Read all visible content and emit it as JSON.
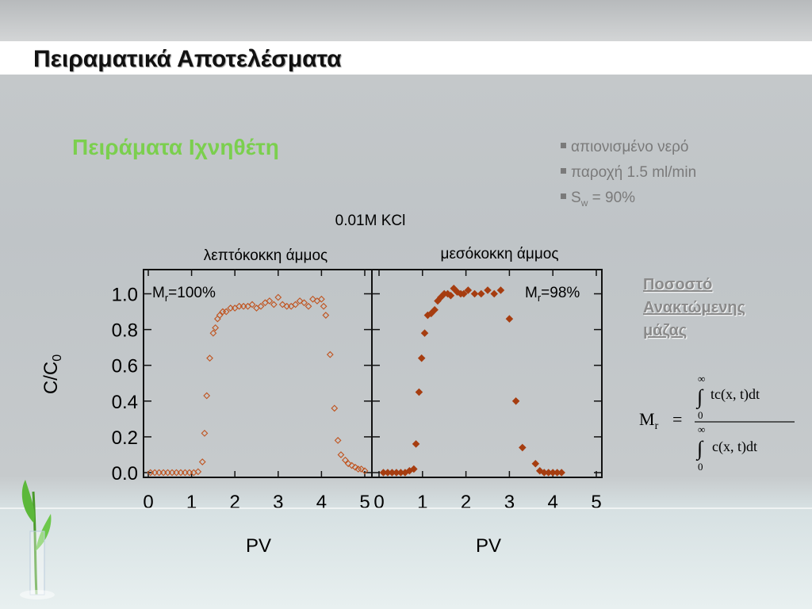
{
  "slide": {
    "title": "Πειραματικά Αποτελέσματα",
    "subtitle": "Πειράματα Ιχνηθέτη",
    "bullets": [
      {
        "text": "απιονισμένο νερό"
      },
      {
        "text": "παροχή 1.5 ml/min"
      },
      {
        "pre": "S",
        "sub": "w",
        "post": " = 90%"
      }
    ],
    "link_lines": [
      "Ποσοστό",
      "Ανακτώμενης",
      "μάζας"
    ],
    "formula": {
      "lhs_main": "M",
      "lhs_sub": "r",
      "eq": "=",
      "numerator": "tc(x, t)dt",
      "denominator": "c(x, t)dt",
      "upper_limit": "∞",
      "lower_limit": "0",
      "integral": "∫"
    }
  },
  "chart_data": [
    {
      "type": "scatter",
      "suptitle": "0.01M KCl",
      "title": "λεπτόκοκκη άμμος",
      "annotation": {
        "main": "M",
        "sub": "r",
        "value": "=100%"
      },
      "xlabel": "PV",
      "ylabel_main": "C/C",
      "ylabel_sub": "0",
      "xlim": [
        0,
        5
      ],
      "ylim": [
        0,
        1.0
      ],
      "xticks": [
        "0",
        "1",
        "2",
        "3",
        "4",
        "5"
      ],
      "yticks": [
        "0.0",
        "0.2",
        "0.4",
        "0.6",
        "0.8",
        "1.0"
      ],
      "marker": "open-diamond",
      "color": "#c0531e",
      "points": [
        [
          0.05,
          0
        ],
        [
          0.15,
          0
        ],
        [
          0.25,
          0
        ],
        [
          0.35,
          0
        ],
        [
          0.45,
          0
        ],
        [
          0.55,
          0
        ],
        [
          0.65,
          0
        ],
        [
          0.75,
          0
        ],
        [
          0.85,
          0
        ],
        [
          0.95,
          0
        ],
        [
          1.05,
          0
        ],
        [
          1.15,
          0.005
        ],
        [
          1.25,
          0.06
        ],
        [
          1.3,
          0.22
        ],
        [
          1.35,
          0.43
        ],
        [
          1.42,
          0.64
        ],
        [
          1.5,
          0.78
        ],
        [
          1.55,
          0.81
        ],
        [
          1.6,
          0.86
        ],
        [
          1.65,
          0.88
        ],
        [
          1.72,
          0.9
        ],
        [
          1.8,
          0.9
        ],
        [
          1.9,
          0.92
        ],
        [
          2.0,
          0.92
        ],
        [
          2.1,
          0.93
        ],
        [
          2.2,
          0.93
        ],
        [
          2.3,
          0.93
        ],
        [
          2.4,
          0.94
        ],
        [
          2.5,
          0.92
        ],
        [
          2.6,
          0.93
        ],
        [
          2.7,
          0.95
        ],
        [
          2.8,
          0.96
        ],
        [
          2.9,
          0.94
        ],
        [
          3.0,
          0.98
        ],
        [
          3.1,
          0.94
        ],
        [
          3.2,
          0.93
        ],
        [
          3.3,
          0.93
        ],
        [
          3.4,
          0.94
        ],
        [
          3.5,
          0.96
        ],
        [
          3.6,
          0.95
        ],
        [
          3.7,
          0.93
        ],
        [
          3.8,
          0.97
        ],
        [
          3.9,
          0.96
        ],
        [
          4.0,
          0.97
        ],
        [
          4.05,
          0.93
        ],
        [
          4.1,
          0.88
        ],
        [
          4.2,
          0.66
        ],
        [
          4.3,
          0.36
        ],
        [
          4.38,
          0.18
        ],
        [
          4.45,
          0.1
        ],
        [
          4.55,
          0.07
        ],
        [
          4.62,
          0.05
        ],
        [
          4.7,
          0.04
        ],
        [
          4.78,
          0.03
        ],
        [
          4.85,
          0.02
        ],
        [
          4.92,
          0.02
        ],
        [
          5.0,
          0.01
        ]
      ]
    },
    {
      "type": "scatter",
      "title": "μεσόκοκκη άμμος",
      "annotation": {
        "main": "M",
        "sub": "r",
        "value": "=98%"
      },
      "xlabel": "PV",
      "xlim": [
        0,
        5
      ],
      "ylim": [
        0,
        1.0
      ],
      "xticks": [
        "0",
        "1",
        "2",
        "3",
        "4",
        "5"
      ],
      "marker": "filled-diamond",
      "color": "#a63d10",
      "points": [
        [
          0.1,
          0
        ],
        [
          0.2,
          0
        ],
        [
          0.3,
          0
        ],
        [
          0.4,
          0
        ],
        [
          0.5,
          0
        ],
        [
          0.6,
          0
        ],
        [
          0.7,
          0.01
        ],
        [
          0.8,
          0.02
        ],
        [
          0.85,
          0.16
        ],
        [
          0.92,
          0.45
        ],
        [
          0.98,
          0.64
        ],
        [
          1.05,
          0.78
        ],
        [
          1.12,
          0.88
        ],
        [
          1.2,
          0.89
        ],
        [
          1.28,
          0.91
        ],
        [
          1.35,
          0.96
        ],
        [
          1.42,
          0.98
        ],
        [
          1.5,
          1.0
        ],
        [
          1.58,
          1.0
        ],
        [
          1.65,
          0.99
        ],
        [
          1.72,
          1.03
        ],
        [
          1.8,
          1.01
        ],
        [
          1.88,
          1.0
        ],
        [
          1.95,
          1.0
        ],
        [
          2.05,
          1.02
        ],
        [
          2.2,
          1.0
        ],
        [
          2.35,
          1.0
        ],
        [
          2.5,
          1.02
        ],
        [
          2.65,
          1.0
        ],
        [
          2.8,
          1.02
        ],
        [
          3.0,
          0.86
        ],
        [
          3.15,
          0.4
        ],
        [
          3.3,
          0.14
        ],
        [
          3.6,
          0.05
        ],
        [
          3.7,
          0.01
        ],
        [
          3.8,
          0
        ],
        [
          3.9,
          0
        ],
        [
          4.0,
          0
        ],
        [
          4.1,
          0
        ],
        [
          4.2,
          0
        ]
      ]
    }
  ]
}
